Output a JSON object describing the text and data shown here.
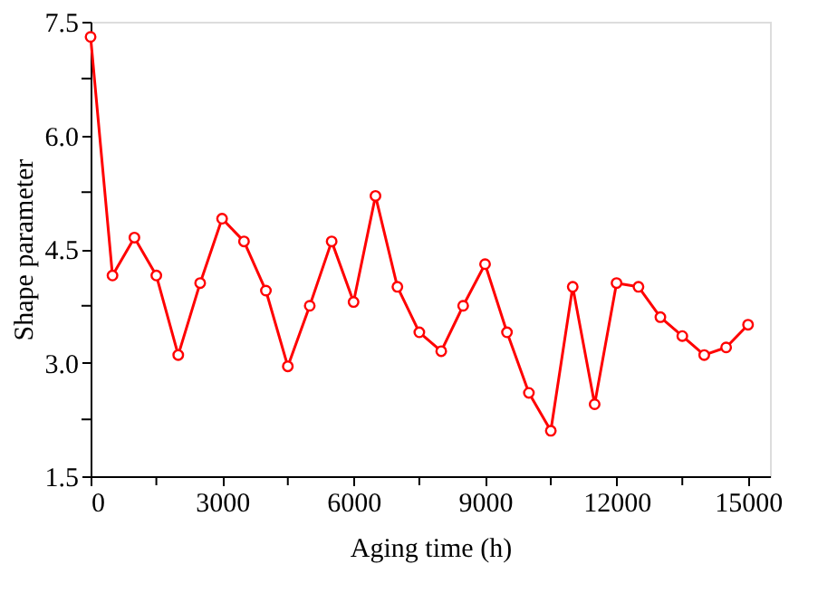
{
  "chart_data": {
    "type": "line",
    "xlabel": "Aging time (h)",
    "ylabel": "Shape parameter",
    "x": [
      0,
      500,
      1000,
      1500,
      2000,
      2500,
      3000,
      3500,
      4000,
      4500,
      5000,
      5500,
      6000,
      6500,
      7000,
      7500,
      8000,
      8500,
      9000,
      9500,
      10000,
      10500,
      11000,
      11500,
      12000,
      12500,
      13000,
      13500,
      14000,
      14500,
      15000
    ],
    "series": [
      {
        "color": "#ff0000",
        "values": [
          7.3,
          4.15,
          4.65,
          4.15,
          3.1,
          4.05,
          4.9,
          4.6,
          3.95,
          2.95,
          3.75,
          4.6,
          3.8,
          5.2,
          4.0,
          3.4,
          3.15,
          3.75,
          4.3,
          3.4,
          2.6,
          2.1,
          4.0,
          2.45,
          4.05,
          4.0,
          3.6,
          3.35,
          3.1,
          3.2,
          3.5
        ]
      }
    ],
    "xlim": [
      0,
      15500
    ],
    "ylim": [
      1.5,
      7.5
    ],
    "xticks": [
      0,
      {
        "value": 1500,
        "label": null
      },
      3000,
      {
        "value": 4500,
        "label": null
      },
      6000,
      {
        "value": 7500,
        "label": null
      },
      9000,
      {
        "value": 10500,
        "label": null
      },
      12000,
      {
        "value": 13500,
        "label": null
      },
      15000
    ],
    "yticks": [
      {
        "value": 1.5,
        "label": "1.5"
      },
      {
        "value": 2.25,
        "label": null
      },
      {
        "value": 3.0,
        "label": "3.0"
      },
      {
        "value": 3.75,
        "label": null
      },
      {
        "value": 4.5,
        "label": "4.5"
      },
      {
        "value": 5.25,
        "label": null
      },
      {
        "value": 6.0,
        "label": "6.0"
      },
      {
        "value": 6.75,
        "label": null
      },
      {
        "value": 7.5,
        "label": "7.5"
      }
    ],
    "marker": "circle",
    "line_style": "solid",
    "grid": false,
    "legend": false
  }
}
